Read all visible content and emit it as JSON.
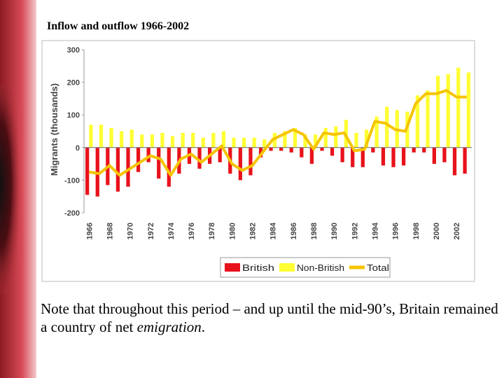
{
  "chart_data": {
    "type": "bar",
    "title": "Inflow and outflow 1966-2002",
    "y_label": "Migrants (thousands)",
    "categories": [
      "1966",
      null,
      "1968",
      null,
      "1970",
      null,
      "1972",
      null,
      "1974",
      null,
      "1976",
      null,
      "1978",
      null,
      "1980",
      null,
      "1982",
      null,
      "1984",
      null,
      "1986",
      null,
      "1988",
      null,
      "1990",
      null,
      "1992",
      null,
      "1994",
      null,
      "1996",
      null,
      "1998",
      null,
      "2000",
      null,
      "2002",
      null
    ],
    "series": [
      {
        "name": "British",
        "type": "bar",
        "color": "#e8121b",
        "values": [
          -145,
          -150,
          -115,
          -135,
          -120,
          -75,
          -45,
          -95,
          -120,
          -80,
          -50,
          -65,
          -50,
          -45,
          -80,
          -100,
          -85,
          -30,
          -10,
          -10,
          -15,
          -30,
          -50,
          -10,
          -25,
          -45,
          -60,
          -60,
          -15,
          -55,
          -60,
          -55,
          -15,
          -15,
          -50,
          -45,
          -85,
          -80
        ]
      },
      {
        "name": "Non-British",
        "type": "bar",
        "color": "#ffff33",
        "values": [
          70,
          70,
          60,
          50,
          55,
          40,
          40,
          45,
          35,
          45,
          45,
          30,
          45,
          50,
          30,
          30,
          30,
          25,
          45,
          50,
          60,
          40,
          40,
          60,
          65,
          85,
          45,
          55,
          95,
          125,
          115,
          110,
          160,
          175,
          220,
          225,
          245,
          230
        ]
      },
      {
        "name": "Total",
        "type": "line",
        "color": "#f5c400",
        "values": [
          -75,
          -80,
          -55,
          -85,
          -65,
          -45,
          -25,
          -35,
          -85,
          -35,
          -20,
          -45,
          -20,
          5,
          -50,
          -70,
          -55,
          -15,
          25,
          40,
          55,
          40,
          -5,
          45,
          40,
          45,
          -10,
          -5,
          80,
          75,
          55,
          50,
          135,
          165,
          165,
          175,
          155,
          155
        ]
      }
    ],
    "ylim": [
      -200,
      300
    ],
    "yticks": [
      -200,
      -100,
      0,
      100,
      200,
      300
    ],
    "grid": false,
    "legend": "bottom",
    "annotations": [
      "Note that throughout this period – and up until the mid-90’s, Britain remained a country of net ",
      "emigration",
      "."
    ]
  }
}
